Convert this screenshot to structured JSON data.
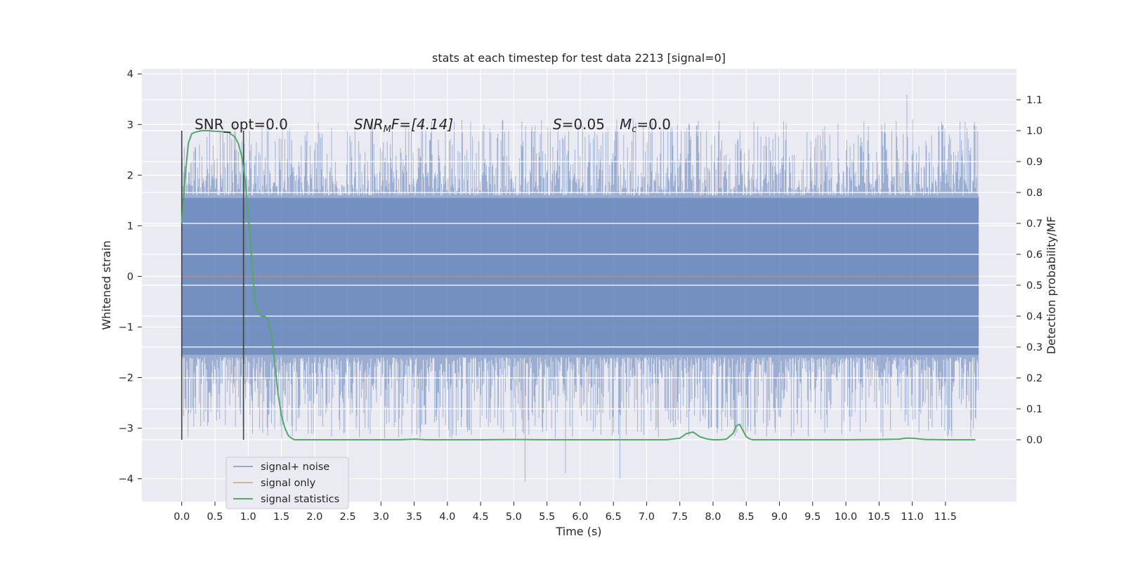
{
  "chart_data": {
    "type": "line",
    "title": "stats at each timestep for test data 2213 [signal=0]",
    "xlabel": "Time (s)",
    "ylabel": "Whitened strain",
    "y2label": "Detection probability/MF",
    "xlim": [
      -0.6,
      12.57
    ],
    "ylim": [
      -4.45,
      4.1
    ],
    "y2lim": [
      -0.2,
      1.2
    ],
    "x_ticks": [
      "0.0",
      "0.5",
      "1.0",
      "1.5",
      "2.0",
      "2.5",
      "3.0",
      "3.5",
      "4.0",
      "4.5",
      "5.0",
      "5.5",
      "6.0",
      "6.5",
      "7.0",
      "7.5",
      "8.0",
      "8.5",
      "9.0",
      "9.5",
      "10.0",
      "10.5",
      "11.0",
      "11.5"
    ],
    "y_ticks": [
      "4",
      "3",
      "2",
      "1",
      "0",
      "−1",
      "−2",
      "−3",
      "−4"
    ],
    "y2_ticks": [
      "1.1",
      "1.0",
      "0.9",
      "0.8",
      "0.7",
      "0.6",
      "0.5",
      "0.4",
      "0.3",
      "0.2",
      "0.1",
      "0.0"
    ],
    "grid": true,
    "legend_position": "lower-left",
    "annotations": {
      "snr_opt": "SNR_opt=0.0",
      "snr_mf_prefix": "SNR",
      "snr_mf_sub": "M",
      "snr_mf_suffix": "F=[4.14]",
      "s_label": "S",
      "s_value": "=0.05",
      "mc_label": "M",
      "mc_sub": "c",
      "mc_value": "=0.0"
    },
    "vertical_markers": [
      0.0,
      0.93
    ],
    "noise_envelope": {
      "x_range": [
        0.0,
        12.0
      ],
      "typical_range": [
        -2.2,
        2.2
      ],
      "max": 3.75,
      "min": -4.1
    },
    "series": [
      {
        "name": "signal+ noise",
        "color": "#4c72b0",
        "style": "dense noise band"
      },
      {
        "name": "signal only",
        "color": "#dd8452",
        "x": [
          0.0,
          12.0
        ],
        "y": [
          0.0,
          0.0
        ]
      },
      {
        "name": "signal statistics",
        "color": "#55a868",
        "axis": "right",
        "x": [
          0.0,
          0.05,
          0.1,
          0.15,
          0.2,
          0.3,
          0.4,
          0.5,
          0.6,
          0.7,
          0.8,
          0.85,
          0.9,
          0.95,
          1.0,
          1.05,
          1.1,
          1.15,
          1.2,
          1.25,
          1.3,
          1.35,
          1.4,
          1.45,
          1.5,
          1.55,
          1.6,
          1.65,
          1.7,
          1.8,
          2.0,
          2.5,
          3.0,
          3.3,
          3.5,
          3.7,
          4.0,
          4.5,
          5.0,
          5.5,
          6.0,
          6.5,
          7.0,
          7.3,
          7.5,
          7.6,
          7.7,
          7.8,
          7.9,
          8.0,
          8.1,
          8.2,
          8.3,
          8.35,
          8.4,
          8.45,
          8.5,
          8.55,
          8.6,
          8.7,
          9.0,
          10.0,
          10.5,
          10.8,
          10.9,
          11.0,
          11.2,
          11.5,
          11.95
        ],
        "y": [
          0.7,
          0.85,
          0.96,
          0.99,
          0.995,
          1.0,
          1.0,
          0.998,
          0.997,
          0.995,
          0.98,
          0.96,
          0.92,
          0.85,
          0.73,
          0.6,
          0.45,
          0.41,
          0.4,
          0.4,
          0.39,
          0.34,
          0.25,
          0.15,
          0.08,
          0.04,
          0.015,
          0.005,
          0.0,
          0.0,
          0.0,
          0.0,
          0.0,
          0.0,
          0.002,
          0.0,
          0.0,
          0.0,
          0.001,
          0.0,
          0.0,
          0.0,
          0.0,
          0.0,
          0.005,
          0.02,
          0.025,
          0.01,
          0.003,
          0.0,
          0.0,
          0.002,
          0.02,
          0.045,
          0.05,
          0.03,
          0.01,
          0.003,
          0.0,
          0.0,
          0.0,
          0.0,
          0.001,
          0.002,
          0.005,
          0.005,
          0.001,
          0.0,
          0.0
        ]
      }
    ]
  }
}
